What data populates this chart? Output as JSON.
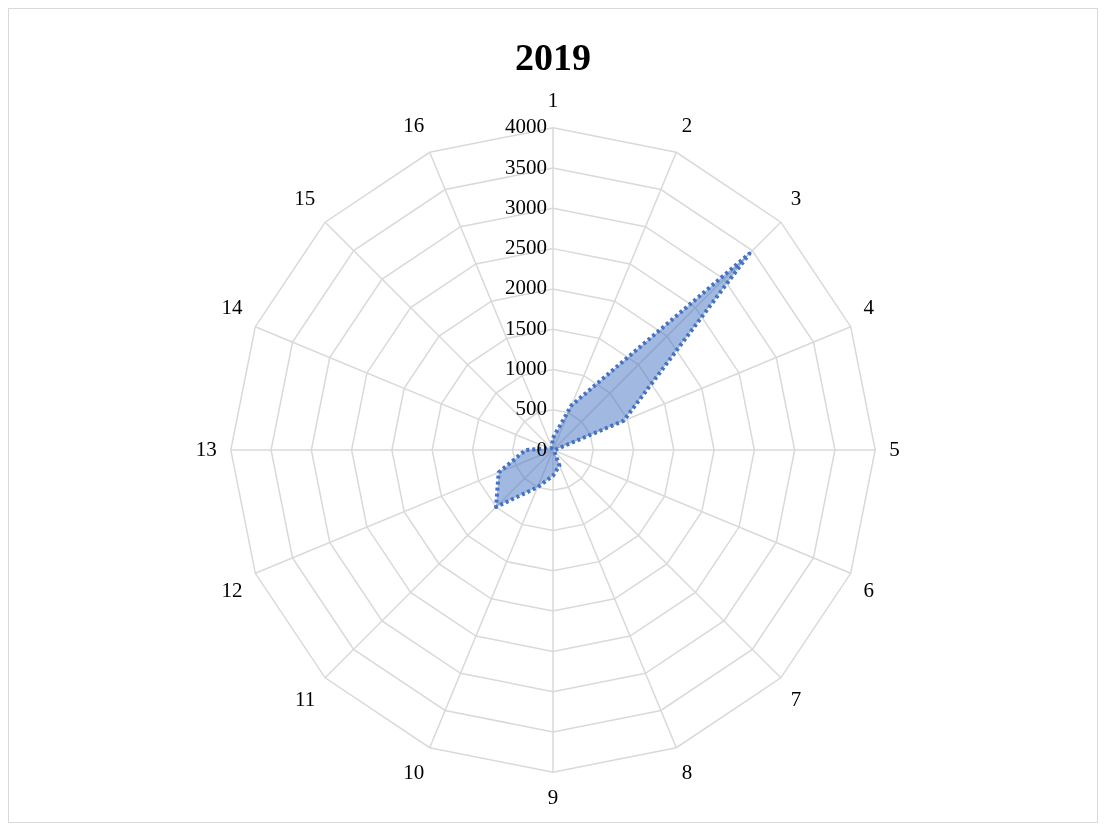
{
  "chart_data": {
    "type": "radar",
    "title": "2019",
    "categories": [
      "1",
      "2",
      "3",
      "4",
      "5",
      "6",
      "7",
      "8",
      "9",
      "10",
      "11",
      "12",
      "13",
      "14",
      "15",
      "16"
    ],
    "series": [
      {
        "color": "#4472c4",
        "values": [
          150,
          600,
          3450,
          950,
          20,
          20,
          20,
          210,
          320,
          500,
          1000,
          730,
          340,
          60,
          30,
          40
        ]
      }
    ],
    "ylim": [
      0,
      4000
    ],
    "yticks": [
      0,
      500,
      1000,
      1500,
      2000,
      2500,
      3000,
      3500,
      4000
    ],
    "grid": true,
    "legend": false,
    "marker": "none",
    "line_style": "dotted"
  }
}
